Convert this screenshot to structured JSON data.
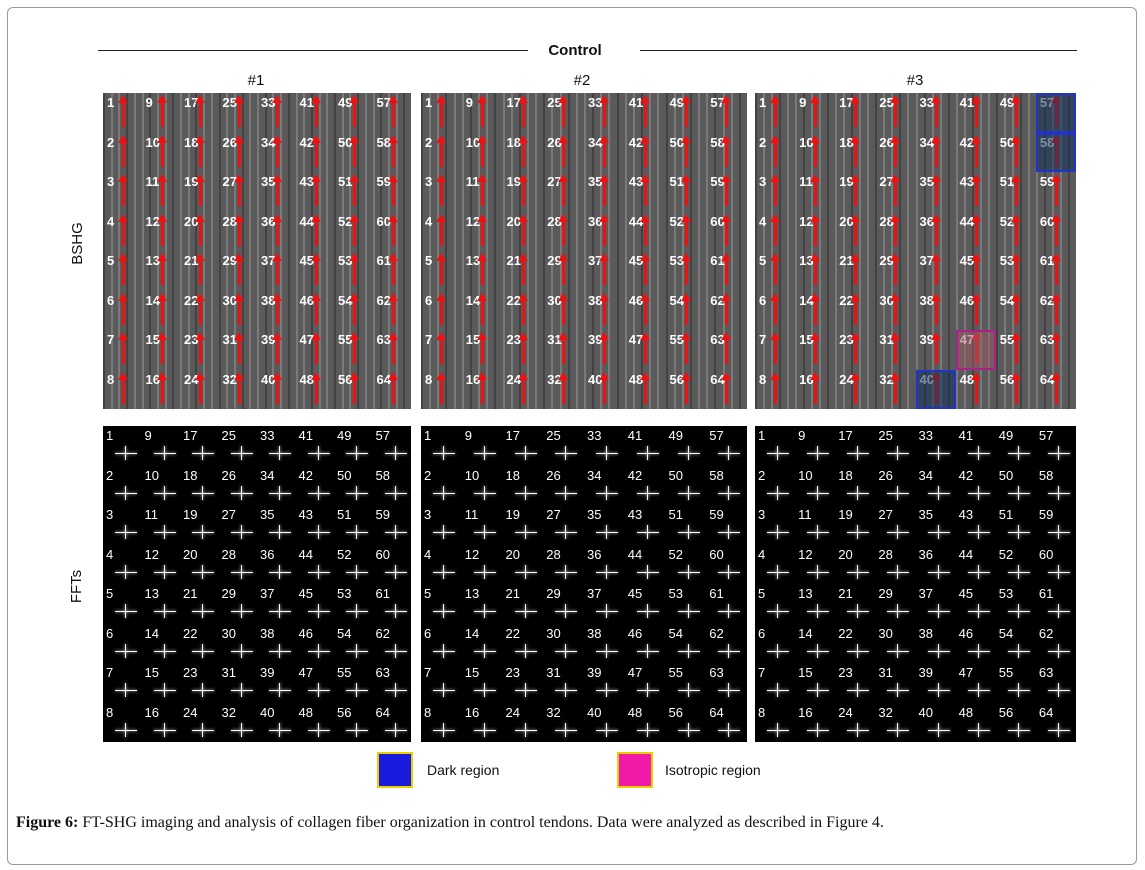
{
  "figure": {
    "group_title": "Control",
    "samples": [
      "#1",
      "#2",
      "#3"
    ],
    "row_labels": [
      "BSHG",
      "FFTs"
    ],
    "regions": {
      "sample3_dark": [
        57,
        58,
        40
      ],
      "sample3_isotropic": [
        47
      ]
    }
  },
  "legend": {
    "dark_label": "Dark region",
    "dark_color": "#1a1adc",
    "isotropic_label": "Isotropic region",
    "isotropic_color": "#f01aa8",
    "border_color": "#e8d000"
  },
  "caption": {
    "label": "Figure 6:",
    "text": " FT-SHG imaging and analysis of collagen fiber organization in control tendons. Data were analyzed as described in Figure 4."
  }
}
